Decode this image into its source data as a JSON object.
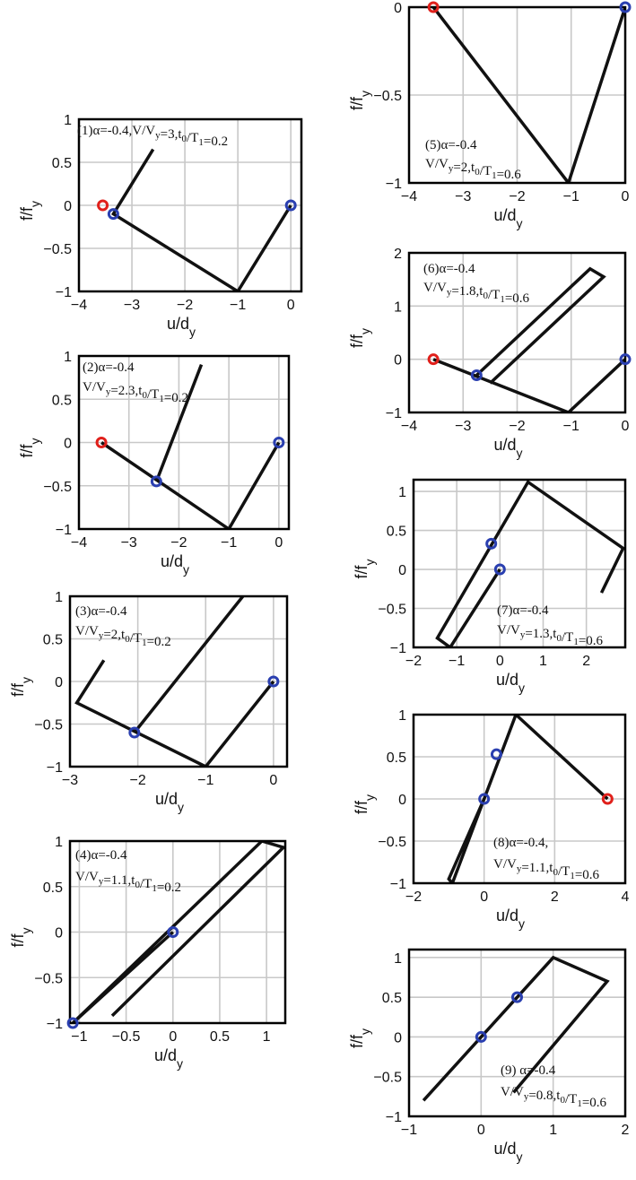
{
  "colors": {
    "line": "#111111",
    "grid": "#c8c8c8",
    "blue_marker": "#2a3fb0",
    "red_marker": "#e0201b",
    "frame": "#000000"
  },
  "chart_data": [
    {
      "type": "line",
      "id": "1",
      "xlabel": "u/d",
      "xlabel_sub": "y",
      "ylabel": "f/f",
      "ylabel_sub": "y",
      "xlim": [
        -4,
        0.2
      ],
      "ylim": [
        -1,
        1
      ],
      "xticks": [
        -4,
        -3,
        -2,
        -1,
        0
      ],
      "yticks": [
        -1,
        -0.5,
        0,
        0.5,
        1
      ],
      "grid": true,
      "annotation_lines": [
        "(1)α=-0.4,V/V_y=3,t_0/T_1=0.2"
      ],
      "series": [
        {
          "x": [
            0,
            -1,
            -3.35,
            -2.6
          ],
          "y": [
            0,
            -1,
            -0.1,
            0.65
          ]
        }
      ],
      "markers": [
        {
          "x": 0,
          "y": 0,
          "color": "blue"
        },
        {
          "x": -3.35,
          "y": -0.1,
          "color": "blue"
        },
        {
          "x": -3.55,
          "y": 0,
          "color": "red"
        }
      ]
    },
    {
      "type": "line",
      "id": "2",
      "xlabel": "u/d",
      "xlabel_sub": "y",
      "ylabel": "f/f",
      "ylabel_sub": "y",
      "xlim": [
        -4,
        0.2
      ],
      "ylim": [
        -1,
        1
      ],
      "xticks": [
        -4,
        -3,
        -2,
        -1,
        0
      ],
      "yticks": [
        -1,
        -0.5,
        0,
        0.5,
        1
      ],
      "grid": true,
      "annotation_lines": [
        "(2)α=-0.4",
        "V/V_y=2.3,t_0/T_1=0.2"
      ],
      "series": [
        {
          "x": [
            0,
            -1,
            -3.55
          ],
          "y": [
            0,
            -1,
            0
          ]
        },
        {
          "x": [
            -2.45,
            -1.55
          ],
          "y": [
            -0.45,
            0.9
          ]
        }
      ],
      "markers": [
        {
          "x": 0,
          "y": 0,
          "color": "blue"
        },
        {
          "x": -2.45,
          "y": -0.45,
          "color": "blue"
        },
        {
          "x": -3.55,
          "y": 0,
          "color": "red"
        }
      ]
    },
    {
      "type": "line",
      "id": "3",
      "xlabel": "u/d",
      "xlabel_sub": "y",
      "ylabel": "f/f",
      "ylabel_sub": "y",
      "xlim": [
        -3,
        0.2
      ],
      "ylim": [
        -1,
        1
      ],
      "xticks": [
        -3,
        -2,
        -1,
        0
      ],
      "yticks": [
        -1,
        -0.5,
        0,
        0.5,
        1
      ],
      "grid": true,
      "annotation_lines": [
        "(3)α=-0.4",
        "V/V_y=2,t_0/T_1=0.2"
      ],
      "series": [
        {
          "x": [
            0,
            -1,
            -2.9,
            -2.5
          ],
          "y": [
            0,
            -1,
            -0.25,
            0.25
          ]
        },
        {
          "x": [
            -2.05,
            -0.45
          ],
          "y": [
            -0.6,
            1.0
          ]
        }
      ],
      "markers": [
        {
          "x": 0,
          "y": 0,
          "color": "blue"
        },
        {
          "x": -2.05,
          "y": -0.6,
          "color": "blue"
        }
      ]
    },
    {
      "type": "line",
      "id": "4",
      "xlabel": "u/d",
      "xlabel_sub": "y",
      "ylabel": "f/f",
      "ylabel_sub": "y",
      "xlim": [
        -1.1,
        1.2
      ],
      "ylim": [
        -1,
        1
      ],
      "xticks": [
        -1,
        -0.5,
        0,
        0.5,
        1
      ],
      "yticks": [
        -1,
        -0.5,
        0,
        0.5,
        1
      ],
      "grid": true,
      "annotation_lines": [
        "(4)α=-0.4",
        "V/V_y=1.1,t_0/T_1=0.2"
      ],
      "series": [
        {
          "x": [
            0,
            -1.07,
            0.95,
            1.18,
            -0.65
          ],
          "y": [
            0,
            -1.0,
            1.0,
            0.93,
            -0.92
          ]
        }
      ],
      "markers": [
        {
          "x": 0,
          "y": 0,
          "color": "blue"
        },
        {
          "x": -1.07,
          "y": -1.0,
          "color": "blue"
        }
      ]
    },
    {
      "type": "line",
      "id": "5",
      "xlabel": "u/d",
      "xlabel_sub": "y",
      "ylabel": "f/f",
      "ylabel_sub": "y",
      "xlim": [
        -4,
        0
      ],
      "ylim": [
        -1,
        0
      ],
      "xticks": [
        -4,
        -3,
        -2,
        -1,
        0
      ],
      "yticks": [
        -1,
        -0.5,
        0
      ],
      "grid": true,
      "annotation_lines": [
        "(5)α=-0.4",
        "V/V_y=2,t_0/T_1=0.6"
      ],
      "series": [
        {
          "x": [
            0,
            -1.05,
            -3.55
          ],
          "y": [
            0,
            -1,
            0
          ]
        }
      ],
      "markers": [
        {
          "x": 0,
          "y": 0,
          "color": "blue"
        },
        {
          "x": -3.55,
          "y": 0,
          "color": "red"
        }
      ]
    },
    {
      "type": "line",
      "id": "6",
      "xlabel": "u/d",
      "xlabel_sub": "y",
      "ylabel": "f/f",
      "ylabel_sub": "y",
      "xlim": [
        -4,
        0
      ],
      "ylim": [
        -1,
        2
      ],
      "xticks": [
        -4,
        -3,
        -2,
        -1,
        0
      ],
      "yticks": [
        -1,
        0,
        1,
        2
      ],
      "grid": true,
      "annotation_lines": [
        "(6)α=-0.4",
        "V/V_y=1.8,t_0/T_1=0.6"
      ],
      "series": [
        {
          "x": [
            0,
            -1.05,
            -3.55
          ],
          "y": [
            0,
            -1,
            0
          ]
        },
        {
          "x": [
            -2.75,
            -0.65,
            -0.4,
            -2.5
          ],
          "y": [
            -0.3,
            1.7,
            1.55,
            -0.45
          ]
        }
      ],
      "markers": [
        {
          "x": 0,
          "y": 0,
          "color": "blue"
        },
        {
          "x": -2.75,
          "y": -0.3,
          "color": "blue"
        },
        {
          "x": -3.55,
          "y": 0,
          "color": "red"
        }
      ]
    },
    {
      "type": "line",
      "id": "7",
      "xlabel": "u/d",
      "xlabel_sub": "y",
      "ylabel": "f/f",
      "ylabel_sub": "y",
      "xlim": [
        -2,
        2.9
      ],
      "ylim": [
        -1,
        1.15
      ],
      "xticks": [
        -2,
        -1,
        0,
        1,
        2
      ],
      "yticks": [
        -1,
        -0.5,
        0,
        0.5,
        1
      ],
      "grid": true,
      "annotation_lines": [
        "(7)α=-0.4",
        "V/V_y=1.3,t_0/T_1=0.6"
      ],
      "series": [
        {
          "x": [
            0,
            -1.15,
            -1.45,
            0.65,
            2.85,
            2.35
          ],
          "y": [
            0,
            -1.0,
            -0.88,
            1.12,
            0.27,
            -0.3
          ]
        }
      ],
      "markers": [
        {
          "x": 0,
          "y": 0,
          "color": "blue"
        },
        {
          "x": -0.2,
          "y": 0.33,
          "color": "blue"
        }
      ]
    },
    {
      "type": "line",
      "id": "8",
      "xlabel": "u/d",
      "xlabel_sub": "y",
      "ylabel": "f/f",
      "ylabel_sub": "y",
      "xlim": [
        -2,
        4
      ],
      "ylim": [
        -1,
        1
      ],
      "xticks": [
        -2,
        0,
        2,
        4
      ],
      "yticks": [
        -1,
        -0.5,
        0,
        0.5,
        1
      ],
      "grid": true,
      "annotation_lines": [
        "(8)α=-0.4,",
        "V/V_y=1.1,t_0/T_1=0.6"
      ],
      "series": [
        {
          "x": [
            0,
            -1.0,
            -0.9,
            0.9,
            3.5
          ],
          "y": [
            0,
            -0.95,
            -1.0,
            1.0,
            0
          ]
        }
      ],
      "markers": [
        {
          "x": 0,
          "y": 0,
          "color": "blue"
        },
        {
          "x": 0.35,
          "y": 0.53,
          "color": "blue"
        },
        {
          "x": 3.5,
          "y": 0,
          "color": "red"
        }
      ]
    },
    {
      "type": "line",
      "id": "9",
      "xlabel": "u/d",
      "xlabel_sub": "y",
      "ylabel": "f/f",
      "ylabel_sub": "y",
      "xlim": [
        -1,
        2
      ],
      "ylim": [
        -1,
        1.1
      ],
      "xticks": [
        -1,
        0,
        1,
        2
      ],
      "yticks": [
        -1,
        -0.5,
        0,
        0.5,
        1
      ],
      "grid": true,
      "annotation_lines": [
        "(9) α=-0.4",
        "V/V_y=0.8,t_0/T_1=0.6"
      ],
      "series": [
        {
          "x": [
            -0.8,
            1.0,
            1.75,
            0.45
          ],
          "y": [
            -0.8,
            1.0,
            0.7,
            -0.7
          ]
        }
      ],
      "markers": [
        {
          "x": 0,
          "y": 0,
          "color": "blue"
        },
        {
          "x": 0.5,
          "y": 0.5,
          "color": "blue"
        }
      ]
    }
  ]
}
